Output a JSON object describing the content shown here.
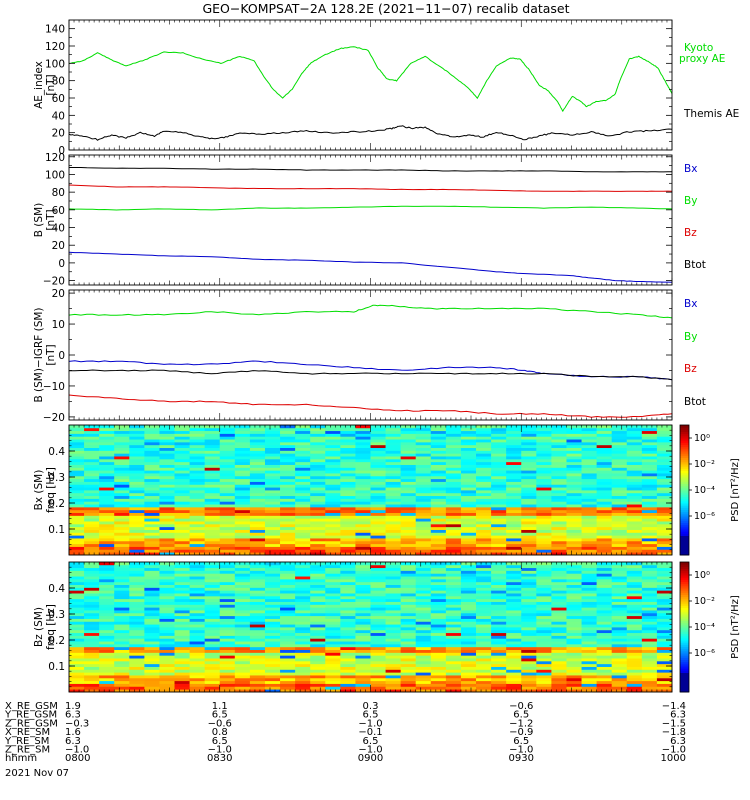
{
  "title": "GEO−KOMPSAT−2A 128.2E (2021−11−07) recalib dataset",
  "colors": {
    "black": "#000000",
    "green": "#00dd00",
    "red": "#dd0000",
    "blue": "#0000cc"
  },
  "chart_data": [
    {
      "type": "line",
      "ylabel": [
        "AE_index",
        "[nT]"
      ],
      "ylim": [
        0,
        150
      ],
      "yticks": [
        0,
        20,
        40,
        60,
        80,
        100,
        120,
        140
      ],
      "x_range": [
        "0800",
        "1000"
      ],
      "series": [
        {
          "name": "Kyoto proxy AE",
          "color": "green",
          "points": [
            [
              0,
              100
            ],
            [
              3,
              103
            ],
            [
              6,
              112
            ],
            [
              9,
              104
            ],
            [
              12,
              97
            ],
            [
              16,
              104
            ],
            [
              20,
              113
            ],
            [
              24,
              112
            ],
            [
              28,
              105
            ],
            [
              32,
              100
            ],
            [
              36,
              108
            ],
            [
              39,
              103
            ],
            [
              41,
              85
            ],
            [
              43,
              70
            ],
            [
              45,
              60
            ],
            [
              47,
              70
            ],
            [
              49,
              88
            ],
            [
              51,
              101
            ],
            [
              54,
              110
            ],
            [
              57,
              117
            ],
            [
              60,
              119
            ],
            [
              63,
              115
            ],
            [
              65,
              95
            ],
            [
              67,
              82
            ],
            [
              69,
              80
            ],
            [
              72,
              100
            ],
            [
              75,
              108
            ],
            [
              78,
              97
            ],
            [
              81,
              85
            ],
            [
              84,
              72
            ],
            [
              86,
              60
            ],
            [
              88,
              80
            ],
            [
              90,
              97
            ],
            [
              93,
              106
            ],
            [
              95,
              105
            ],
            [
              97,
              92
            ],
            [
              99,
              75
            ],
            [
              101,
              68
            ],
            [
              103,
              55
            ],
            [
              104,
              45
            ],
            [
              106,
              62
            ],
            [
              108,
              55
            ],
            [
              109,
              50
            ],
            [
              111,
              56
            ],
            [
              113,
              57
            ],
            [
              115,
              64
            ],
            [
              116,
              80
            ],
            [
              118,
              105
            ],
            [
              120,
              108
            ],
            [
              122,
              102
            ],
            [
              124,
              95
            ],
            [
              126,
              75
            ],
            [
              127,
              65
            ]
          ]
        },
        {
          "name": "Themis AE",
          "color": "black",
          "points": [
            [
              0,
              18
            ],
            [
              3,
              16
            ],
            [
              6,
              12
            ],
            [
              9,
              17
            ],
            [
              12,
              14
            ],
            [
              15,
              20
            ],
            [
              18,
              16
            ],
            [
              20,
              22
            ],
            [
              24,
              20
            ],
            [
              27,
              16
            ],
            [
              30,
              13
            ],
            [
              33,
              15
            ],
            [
              36,
              20
            ],
            [
              40,
              18
            ],
            [
              45,
              20
            ],
            [
              50,
              22
            ],
            [
              55,
              20
            ],
            [
              60,
              21
            ],
            [
              65,
              22
            ],
            [
              68,
              25
            ],
            [
              70,
              28
            ],
            [
              72,
              25
            ],
            [
              75,
              26
            ],
            [
              78,
              18
            ],
            [
              81,
              15
            ],
            [
              84,
              17
            ],
            [
              87,
              15
            ],
            [
              90,
              20
            ],
            [
              93,
              17
            ],
            [
              96,
              12
            ],
            [
              99,
              16
            ],
            [
              102,
              20
            ],
            [
              106,
              17
            ],
            [
              110,
              21
            ],
            [
              114,
              16
            ],
            [
              118,
              21
            ],
            [
              122,
              22
            ],
            [
              127,
              24
            ]
          ]
        }
      ]
    },
    {
      "type": "line",
      "ylabel": [
        "B (SM)",
        "[nT]"
      ],
      "ylim": [
        -25,
        122
      ],
      "yticks": [
        -20,
        0,
        20,
        40,
        60,
        80,
        100,
        120
      ],
      "series": [
        {
          "name": "Bx",
          "color": "blue",
          "points": [
            [
              0,
              12
            ],
            [
              10,
              10
            ],
            [
              20,
              8
            ],
            [
              30,
              7
            ],
            [
              40,
              4
            ],
            [
              50,
              3
            ],
            [
              60,
              1
            ],
            [
              70,
              0
            ],
            [
              80,
              -5
            ],
            [
              90,
              -10
            ],
            [
              95,
              -12
            ],
            [
              105,
              -14
            ],
            [
              110,
              -17
            ],
            [
              115,
              -20
            ],
            [
              120,
              -21
            ],
            [
              127,
              -22
            ]
          ]
        },
        {
          "name": "By",
          "color": "green",
          "points": [
            [
              0,
              61
            ],
            [
              10,
              60
            ],
            [
              20,
              61
            ],
            [
              30,
              60
            ],
            [
              40,
              62
            ],
            [
              50,
              62
            ],
            [
              60,
              63
            ],
            [
              70,
              64
            ],
            [
              80,
              64
            ],
            [
              90,
              63
            ],
            [
              100,
              62
            ],
            [
              110,
              63
            ],
            [
              120,
              62
            ],
            [
              127,
              61
            ]
          ]
        },
        {
          "name": "Bz",
          "color": "red",
          "points": [
            [
              0,
              88
            ],
            [
              10,
              86
            ],
            [
              20,
              86
            ],
            [
              30,
              85
            ],
            [
              40,
              84
            ],
            [
              50,
              84
            ],
            [
              60,
              84
            ],
            [
              70,
              83
            ],
            [
              80,
              83
            ],
            [
              90,
              82
            ],
            [
              100,
              81
            ],
            [
              110,
              81
            ],
            [
              120,
              81
            ],
            [
              127,
              81
            ]
          ]
        },
        {
          "name": "Btot",
          "color": "black",
          "points": [
            [
              0,
              108
            ],
            [
              10,
              107
            ],
            [
              20,
              107
            ],
            [
              30,
              106
            ],
            [
              40,
              106
            ],
            [
              50,
              105
            ],
            [
              60,
              105
            ],
            [
              70,
              105
            ],
            [
              80,
              104
            ],
            [
              90,
              104
            ],
            [
              100,
              104
            ],
            [
              110,
              103
            ],
            [
              120,
              103
            ],
            [
              127,
              103
            ]
          ]
        }
      ]
    },
    {
      "type": "line",
      "ylabel": [
        "B (SM)−IGRF (SM)",
        "[nT]"
      ],
      "ylim": [
        -21,
        21
      ],
      "yticks": [
        -20,
        -10,
        0,
        10,
        20
      ],
      "series": [
        {
          "name": "Bx",
          "color": "blue",
          "points": [
            [
              0,
              -2
            ],
            [
              10,
              -2
            ],
            [
              20,
              -3
            ],
            [
              30,
              -3
            ],
            [
              40,
              -2
            ],
            [
              50,
              -3
            ],
            [
              60,
              -4
            ],
            [
              70,
              -5
            ],
            [
              80,
              -4
            ],
            [
              90,
              -4
            ],
            [
              96,
              -5
            ],
            [
              100,
              -6
            ],
            [
              110,
              -7
            ],
            [
              120,
              -7
            ],
            [
              127,
              -8
            ]
          ]
        },
        {
          "name": "By",
          "color": "green",
          "points": [
            [
              0,
              13
            ],
            [
              10,
              13
            ],
            [
              20,
              13
            ],
            [
              30,
              14
            ],
            [
              40,
              13
            ],
            [
              50,
              14
            ],
            [
              60,
              14
            ],
            [
              64,
              16
            ],
            [
              68,
              16
            ],
            [
              75,
              15
            ],
            [
              80,
              15
            ],
            [
              90,
              15
            ],
            [
              100,
              15
            ],
            [
              110,
              14
            ],
            [
              120,
              13
            ],
            [
              127,
              12
            ]
          ]
        },
        {
          "name": "Bz",
          "color": "red",
          "points": [
            [
              0,
              -13
            ],
            [
              10,
              -14
            ],
            [
              20,
              -15
            ],
            [
              30,
              -15
            ],
            [
              40,
              -16
            ],
            [
              50,
              -16
            ],
            [
              60,
              -17
            ],
            [
              70,
              -18
            ],
            [
              80,
              -18
            ],
            [
              90,
              -19
            ],
            [
              100,
              -19
            ],
            [
              110,
              -20
            ],
            [
              120,
              -20
            ],
            [
              127,
              -19
            ]
          ]
        },
        {
          "name": "Btot",
          "color": "black",
          "points": [
            [
              0,
              -5
            ],
            [
              10,
              -5
            ],
            [
              20,
              -5
            ],
            [
              30,
              -6
            ],
            [
              40,
              -5
            ],
            [
              50,
              -6
            ],
            [
              60,
              -6
            ],
            [
              70,
              -6
            ],
            [
              80,
              -6
            ],
            [
              90,
              -6
            ],
            [
              100,
              -6
            ],
            [
              110,
              -7
            ],
            [
              120,
              -7
            ],
            [
              127,
              -8
            ]
          ]
        }
      ]
    },
    {
      "type": "heatmap",
      "ylabel": [
        "Bx (SM)",
        "freq [Hz]"
      ],
      "ylim": [
        0,
        0.5
      ],
      "yticks": [
        0.1,
        0.2,
        0.3,
        0.4
      ],
      "colorbar": {
        "label": "PSD [nT²/Hz]",
        "log_range": [
          -9,
          1
        ],
        "ticks": [
          "10⁰",
          "10⁻²",
          "10⁻⁴",
          "10⁻⁶"
        ]
      }
    },
    {
      "type": "heatmap",
      "ylabel": [
        "Bz (SM)",
        "freq [Hz]"
      ],
      "ylim": [
        0,
        0.5
      ],
      "yticks": [
        0.1,
        0.2,
        0.3,
        0.4
      ],
      "colorbar": {
        "label": "PSD [nT²/Hz]",
        "log_range": [
          -9,
          1
        ],
        "ticks": [
          "10⁰",
          "10⁻²",
          "10⁻⁴",
          "10⁻⁶"
        ]
      }
    }
  ],
  "legends": [
    [
      {
        "text": "Kyoto",
        "color": "green"
      },
      {
        "text": "proxy AE",
        "color": "green"
      },
      {
        "text": "Themis AE",
        "color": "black"
      }
    ],
    [
      {
        "text": "Bx",
        "color": "blue"
      },
      {
        "text": "By",
        "color": "green"
      },
      {
        "text": "Bz",
        "color": "red"
      },
      {
        "text": "Btot",
        "color": "black"
      }
    ],
    [
      {
        "text": "Bx",
        "color": "blue"
      },
      {
        "text": "By",
        "color": "green"
      },
      {
        "text": "Bz",
        "color": "red"
      },
      {
        "text": "Btot",
        "color": "black"
      }
    ]
  ],
  "ephemeris": {
    "rows": [
      {
        "label": "X_RE_GSM",
        "values": [
          "1.9",
          "1.1",
          "0.3",
          "−0.6",
          "−1.4"
        ]
      },
      {
        "label": "Y_RE_GSM",
        "values": [
          "6.3",
          "6.5",
          "6.5",
          "6.5",
          "6.3"
        ]
      },
      {
        "label": "Z_RE_GSM",
        "values": [
          "−0.3",
          "−0.6",
          "−1.0",
          "−1.2",
          "−1.5"
        ]
      },
      {
        "label": "X_RE_SM",
        "values": [
          "1.6",
          "0.8",
          "−0.1",
          "−0.9",
          "−1.8"
        ]
      },
      {
        "label": "Y_RE_SM",
        "values": [
          "6.3",
          "6.5",
          "6.5",
          "6.5",
          "6.3"
        ]
      },
      {
        "label": "Z_RE_SM",
        "values": [
          "−1.0",
          "−1.0",
          "−1.0",
          "−1.0",
          "−1.0"
        ]
      },
      {
        "label": "hhmm",
        "values": [
          "0800",
          "0830",
          "0900",
          "0930",
          "1000"
        ]
      }
    ],
    "date": "2021 Nov 07"
  }
}
